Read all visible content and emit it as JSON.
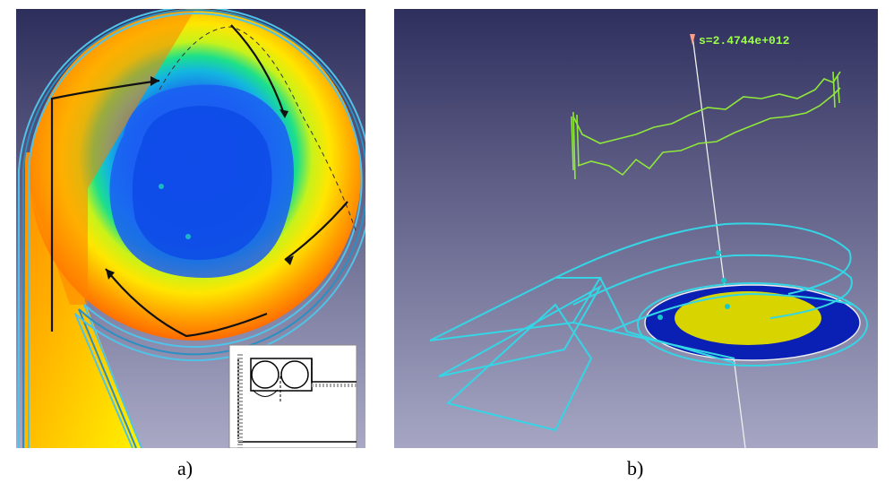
{
  "captions": {
    "a": "a)",
    "b": "b)"
  },
  "probe": {
    "label": "s=2.4744e+012",
    "color": "#9cff4a"
  },
  "colors": {
    "background_top": "#2f2f5e",
    "background_bottom": "#a6a6c4",
    "field_low": "#0b3fe0",
    "field_mid": "#00d0a0",
    "field_high": "#ffd500",
    "field_max": "#ff6a00",
    "wireframe": "#34d6e6",
    "signal_trace": "#8fe83a",
    "disk_fill": "#d8d400",
    "ring_fill": "#0a20b4"
  },
  "icons": [
    "flow-arrow-icon",
    "probe-marker-icon",
    "probe-point-icon"
  ]
}
